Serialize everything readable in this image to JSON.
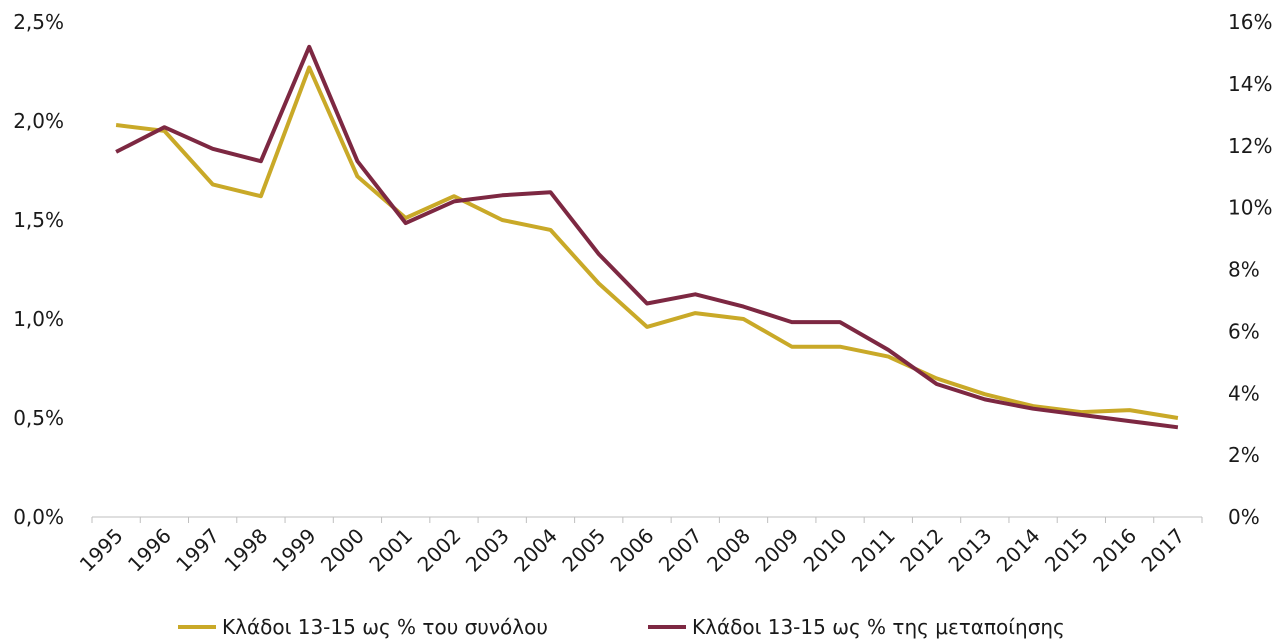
{
  "chart_data": {
    "type": "line",
    "x": [
      "1995",
      "1996",
      "1997",
      "1998",
      "1999",
      "2000",
      "2001",
      "2002",
      "2003",
      "2004",
      "2005",
      "2006",
      "2007",
      "2008",
      "2009",
      "2010",
      "2011",
      "2012",
      "2013",
      "2014",
      "2015",
      "2016",
      "2017"
    ],
    "left_axis": {
      "ylim": [
        0,
        2.5
      ],
      "ticks": [
        0,
        0.5,
        1.0,
        1.5,
        2.0,
        2.5
      ],
      "tick_labels": [
        "0,0%",
        "0,5%",
        "1,0%",
        "1,5%",
        "2,0%",
        "2,5%"
      ]
    },
    "right_axis": {
      "ylim": [
        0,
        16
      ],
      "ticks": [
        0,
        2,
        4,
        6,
        8,
        10,
        12,
        14,
        16
      ],
      "tick_labels": [
        "0%",
        "2%",
        "4%",
        "6%",
        "8%",
        "10%",
        "12%",
        "14%",
        "16%"
      ]
    },
    "series": [
      {
        "name": "Κλάδοι 13-15 ως % του συνόλου",
        "axis": "left",
        "color": "#C9A928",
        "values": [
          1.98,
          1.95,
          1.68,
          1.62,
          2.27,
          1.72,
          1.51,
          1.62,
          1.5,
          1.45,
          1.18,
          0.96,
          1.03,
          1.0,
          0.86,
          0.86,
          0.81,
          0.7,
          0.62,
          0.56,
          0.53,
          0.54,
          0.5
        ]
      },
      {
        "name": "Κλάδοι 13-15 ως % της μεταποίησης",
        "axis": "right",
        "color": "#7D2842",
        "values": [
          11.8,
          12.6,
          11.9,
          11.5,
          15.2,
          11.5,
          9.5,
          10.2,
          10.4,
          10.5,
          8.5,
          6.9,
          7.2,
          6.8,
          6.3,
          6.3,
          5.4,
          4.3,
          3.8,
          3.5,
          3.3,
          3.1,
          2.9
        ]
      }
    ],
    "grid": false,
    "legend_position": "bottom"
  }
}
